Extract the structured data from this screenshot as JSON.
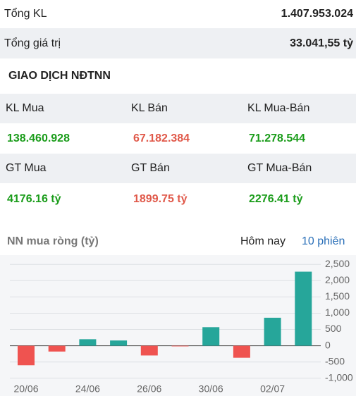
{
  "summary": {
    "rows": [
      [
        "Tổng KL",
        "1.407.953.024"
      ],
      [
        "Tổng giá trị",
        "33.041,55 tỷ"
      ]
    ]
  },
  "section_title": "GIAO DỊCH NĐTNN",
  "table": {
    "rows": [
      [
        "KL Mua",
        "KL Bán",
        "KL Mua-Bán"
      ],
      [
        "138.460.928",
        "67.182.384",
        "71.278.544"
      ],
      [
        "GT Mua",
        "GT Bán",
        "GT Mua-Bán"
      ],
      [
        "4176.16 tỷ",
        "1899.75 tỷ",
        "2276.41 tỷ"
      ]
    ]
  },
  "tabs": [
    "Hôm nay",
    "10 phiên"
  ],
  "chart_data": {
    "type": "bar",
    "title": "NN mua ròng (tỷ)",
    "categories": [
      "20/06",
      null,
      "24/06",
      null,
      "26/06",
      null,
      "30/06",
      null,
      "02/07",
      null
    ],
    "values": [
      -600,
      -180,
      200,
      160,
      -300,
      -20,
      570,
      -370,
      860,
      2276.41
    ],
    "positive_color": "#26a69a",
    "negative_color": "#ef5350",
    "ylim": [
      -1200,
      2700
    ],
    "yticks": [
      {
        "value": 2500,
        "label": "2,500"
      },
      {
        "value": 2000,
        "label": "2,000"
      },
      {
        "value": 1500,
        "label": "1,500"
      },
      {
        "value": 1000,
        "label": "1,000"
      },
      500,
      0,
      -500,
      {
        "value": -1000,
        "label": "-1,000"
      }
    ],
    "grid": true
  }
}
